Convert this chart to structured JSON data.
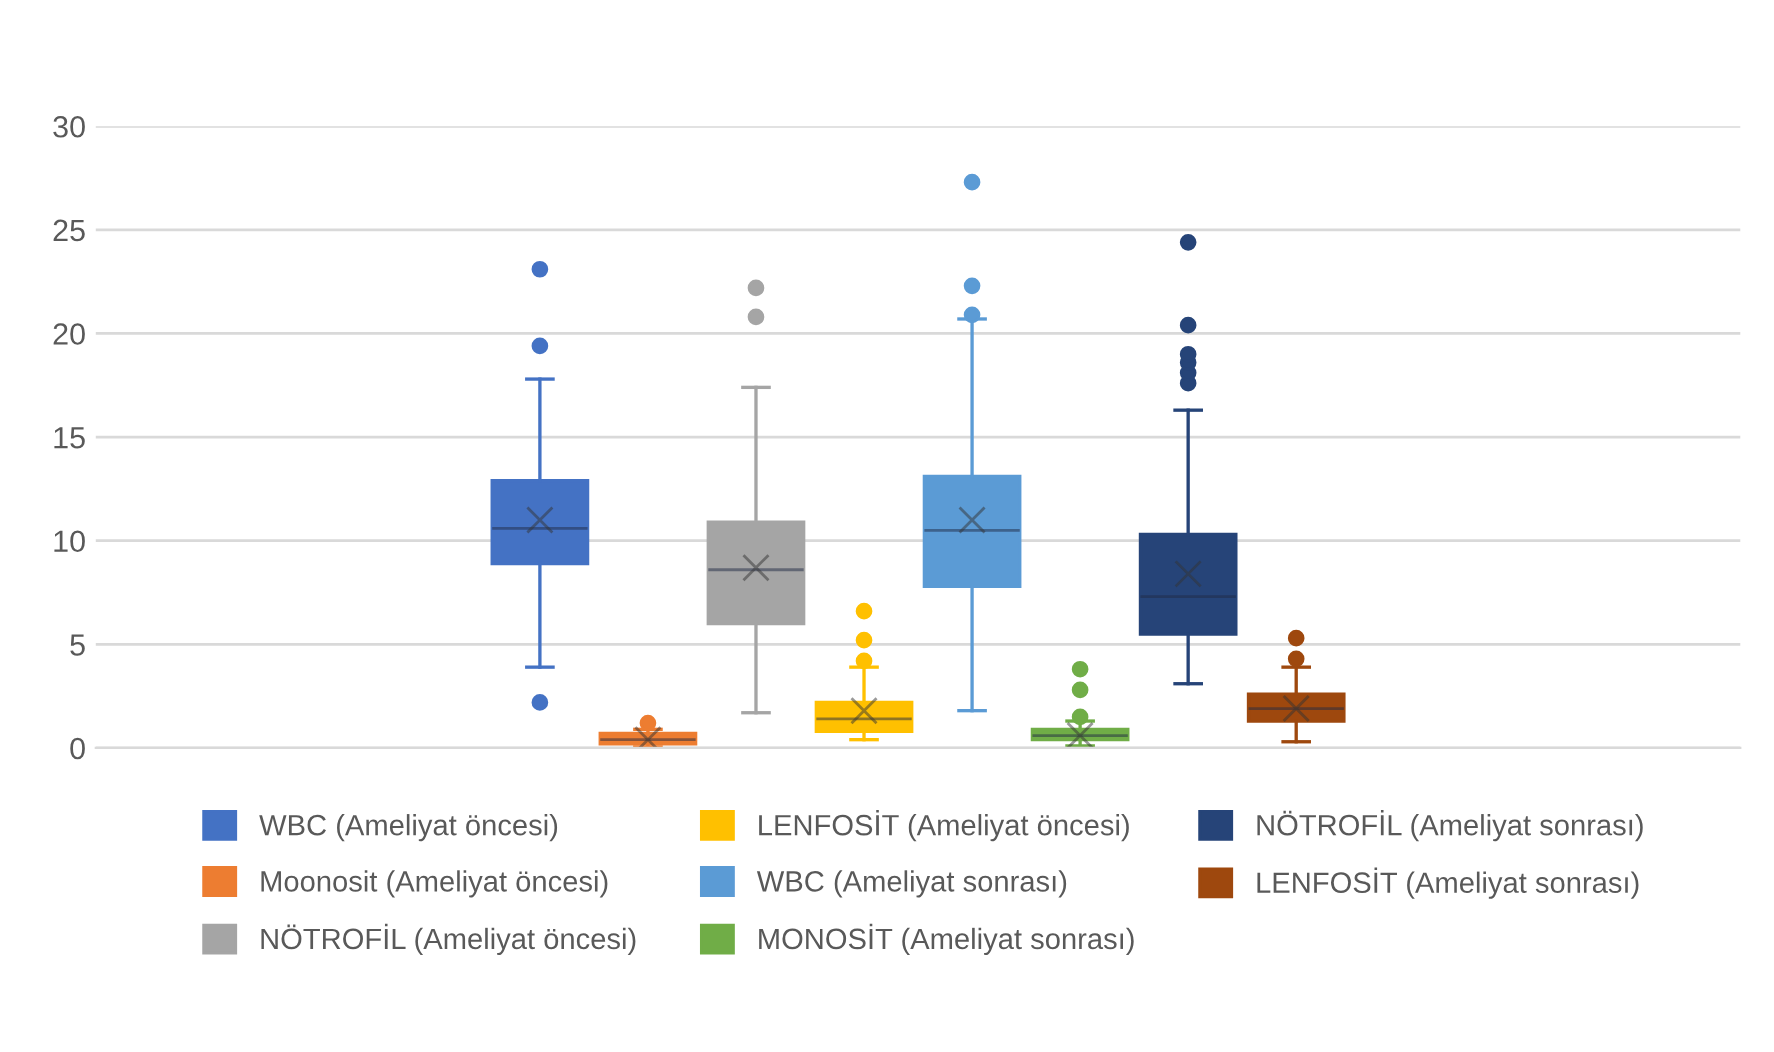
{
  "chart_data": {
    "type": "box",
    "categories": [
      null
    ],
    "ylim": [
      0,
      30
    ],
    "yticks": [
      0,
      5,
      10,
      15,
      20,
      25,
      30
    ],
    "grid": "y",
    "legend": "bottom",
    "series": [
      {
        "name": "WBC (Ameliyat öncesi)",
        "color": "#4472c4",
        "boxes": [
          {
            "low": 3.9,
            "q1": 8.9,
            "median": 10.6,
            "q3": 12.9,
            "high": 17.8,
            "mean": 11.0,
            "outliers": [
              2.2,
              19.4,
              23.1
            ]
          }
        ]
      },
      {
        "name": "Moonosit (Ameliyat öncesi)",
        "color": "#ed7d31",
        "boxes": [
          {
            "low": 0.05,
            "q1": 0.2,
            "median": 0.4,
            "q3": 0.7,
            "high": 0.9,
            "mean": 0.4,
            "outliers": [
              1.2
            ]
          }
        ]
      },
      {
        "name": "NÖTROFİL (Ameliyat öncesi)",
        "color": "#a5a5a5",
        "boxes": [
          {
            "low": 1.7,
            "q1": 6.0,
            "median": 8.6,
            "q3": 10.9,
            "high": 17.4,
            "mean": 8.7,
            "outliers": [
              20.8,
              22.2
            ]
          }
        ]
      },
      {
        "name": "LENFOSİT (Ameliyat öncesi)",
        "color": "#ffc000",
        "boxes": [
          {
            "low": 0.4,
            "q1": 0.8,
            "median": 1.4,
            "q3": 2.2,
            "high": 3.9,
            "mean": 1.8,
            "outliers": [
              4.2,
              5.2,
              6.6
            ]
          }
        ]
      },
      {
        "name": "WBC (Ameliyat sonrası)",
        "color": "#5b9bd5",
        "boxes": [
          {
            "low": 1.8,
            "q1": 7.8,
            "median": 10.5,
            "q3": 13.1,
            "high": 20.7,
            "mean": 11.0,
            "outliers": [
              20.9,
              22.3,
              27.3
            ]
          }
        ]
      },
      {
        "name": "MONOSİT (Ameliyat sonrası)",
        "color": "#70ad47",
        "boxes": [
          {
            "low": 0.1,
            "q1": 0.4,
            "median": 0.6,
            "q3": 0.9,
            "high": 1.3,
            "mean": 0.6,
            "outliers": [
              1.5,
              2.8,
              3.8
            ]
          }
        ]
      },
      {
        "name": "NÖTROFİL (Ameliyat sonrası)",
        "color": "#264478",
        "boxes": [
          {
            "low": 3.1,
            "q1": 5.5,
            "median": 7.3,
            "q3": 10.3,
            "high": 16.3,
            "mean": 8.4,
            "outliers": [
              17.6,
              18.1,
              18.6,
              19.0,
              20.4,
              24.4
            ]
          }
        ]
      },
      {
        "name": "LENFOSİT (Ameliyat sonrası)",
        "color": "#9e480e",
        "boxes": [
          {
            "low": 0.3,
            "q1": 1.3,
            "median": 1.9,
            "q3": 2.6,
            "high": 3.9,
            "mean": 1.9,
            "outliers": [
              4.3,
              5.3
            ]
          }
        ]
      }
    ]
  }
}
